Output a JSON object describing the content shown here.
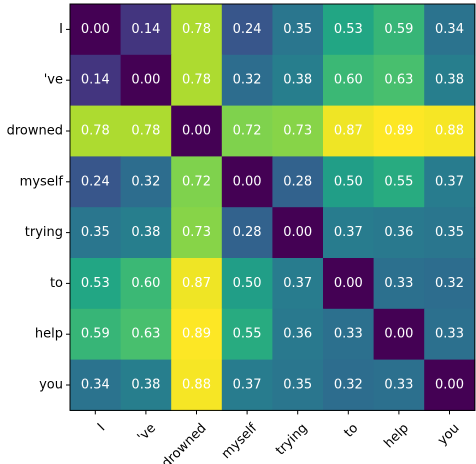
{
  "chart_data": {
    "type": "heatmap",
    "title": "",
    "xlabel": "",
    "ylabel": "",
    "labels": [
      "I",
      "'ve",
      "drowned",
      "myself",
      "trying",
      "to",
      "help",
      "you"
    ],
    "values": [
      [
        0.0,
        0.14,
        0.78,
        0.24,
        0.35,
        0.53,
        0.59,
        0.34
      ],
      [
        0.14,
        0.0,
        0.78,
        0.32,
        0.38,
        0.6,
        0.63,
        0.38
      ],
      [
        0.78,
        0.78,
        0.0,
        0.72,
        0.73,
        0.87,
        0.89,
        0.88
      ],
      [
        0.24,
        0.32,
        0.72,
        0.0,
        0.28,
        0.5,
        0.55,
        0.37
      ],
      [
        0.35,
        0.38,
        0.73,
        0.28,
        0.0,
        0.37,
        0.36,
        0.35
      ],
      [
        0.53,
        0.6,
        0.87,
        0.5,
        0.37,
        0.0,
        0.33,
        0.32
      ],
      [
        0.59,
        0.63,
        0.89,
        0.55,
        0.36,
        0.33,
        0.0,
        0.33
      ],
      [
        0.34,
        0.38,
        0.88,
        0.37,
        0.35,
        0.32,
        0.33,
        0.0
      ]
    ],
    "value_range": [
      0.0,
      0.89
    ],
    "colormap": "viridis",
    "cell_label_color": "#ffffff",
    "cell_label_format": "two-decimals",
    "x_tick_rotation": "45deg"
  }
}
